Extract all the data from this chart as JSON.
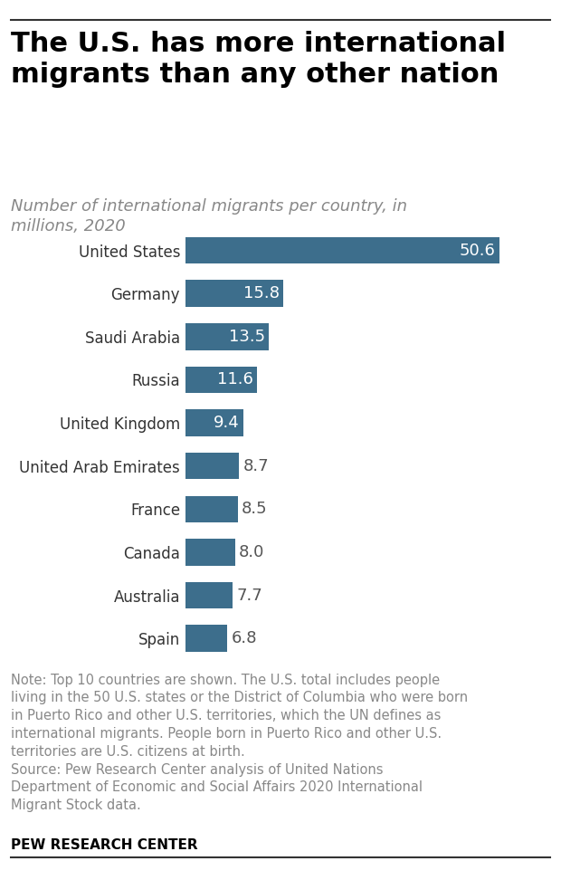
{
  "title": "The U.S. has more international\nmigrants than any other nation",
  "subtitle": "Number of international migrants per country, in\nmillions, 2020",
  "countries": [
    "United States",
    "Germany",
    "Saudi Arabia",
    "Russia",
    "United Kingdom",
    "United Arab Emirates",
    "France",
    "Canada",
    "Australia",
    "Spain"
  ],
  "values": [
    50.6,
    15.8,
    13.5,
    11.6,
    9.4,
    8.7,
    8.5,
    8.0,
    7.7,
    6.8
  ],
  "bar_color": "#3d6e8c",
  "label_inside_color": "#ffffff",
  "label_outside_color": "#555555",
  "label_inside_threshold": 9.0,
  "note_text": "Note: Top 10 countries are shown. The U.S. total includes people\nliving in the 50 U.S. states or the District of Columbia who were born\nin Puerto Rico and other U.S. territories, which the UN defines as\ninternational migrants. People born in Puerto Rico and other U.S.\nterritories are U.S. citizens at birth.\nSource: Pew Research Center analysis of United Nations\nDepartment of Economic and Social Affairs 2020 International\nMigrant Stock data.",
  "footer_text": "PEW RESEARCH CENTER",
  "background_color": "#ffffff",
  "xlim": [
    0,
    56
  ],
  "title_fontsize": 22,
  "subtitle_fontsize": 13,
  "bar_label_fontsize": 13,
  "country_label_fontsize": 12,
  "note_fontsize": 10.5,
  "footer_fontsize": 11
}
